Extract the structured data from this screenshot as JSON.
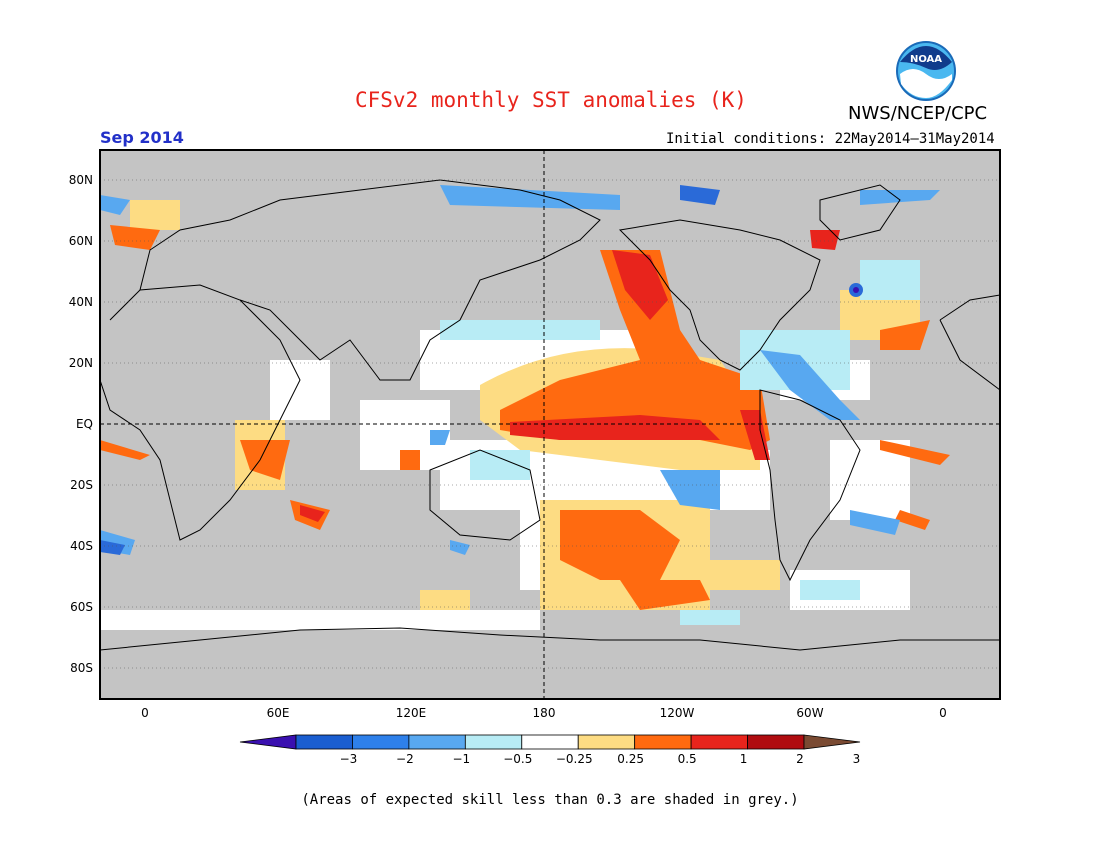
{
  "header": {
    "title": "CFSv2 monthly SST anomalies (K)",
    "agency": "NWS/NCEP/CPC",
    "logo_text": "NOAA",
    "month": "Sep 2014",
    "initial_conditions": "Initial conditions: 22May2014–31May2014"
  },
  "map": {
    "lat_labels": [
      "80N",
      "60N",
      "40N",
      "20N",
      "EQ",
      "20S",
      "40S",
      "60S",
      "80S"
    ],
    "lon_labels": [
      "0",
      "60E",
      "120E",
      "180",
      "120W",
      "60W",
      "0"
    ],
    "colors": {
      "land_grey": "#c4c4c4",
      "ocean_white": "#ffffff",
      "warm_strong": "#e8241c",
      "warm": "#ff6a10",
      "warm_light": "#fddc83",
      "cool_light": "#b8ecf5",
      "cool": "#58a8f0",
      "cool_strong": "#2a6ad8",
      "cool_deep": "#3a10b0"
    }
  },
  "colorbar": {
    "labels": [
      "−3",
      "−2",
      "−1",
      "−0.5",
      "−0.25",
      "0.25",
      "0.5",
      "1",
      "2",
      "3"
    ],
    "colors": [
      "#3a10b0",
      "#1a5ed0",
      "#2e80ea",
      "#58a8f0",
      "#b8ecf5",
      "#ffffff",
      "#fddc83",
      "#ff6a10",
      "#e8241c",
      "#b00c10",
      "#7a4a32"
    ]
  },
  "footer": {
    "note": "(Areas of expected skill less than 0.3 are shaded in grey.)"
  }
}
